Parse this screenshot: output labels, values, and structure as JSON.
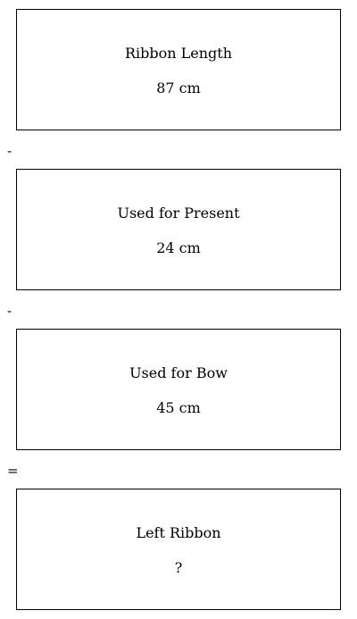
{
  "steps": [
    {
      "label": "Ribbon Length",
      "value": "87 cm"
    },
    {
      "label": "Used for Present",
      "value": "24 cm"
    },
    {
      "label": "Used for Bow",
      "value": "45 cm"
    },
    {
      "label": "Left Ribbon",
      "value": "?"
    }
  ],
  "operators": [
    "-",
    "-",
    "="
  ]
}
